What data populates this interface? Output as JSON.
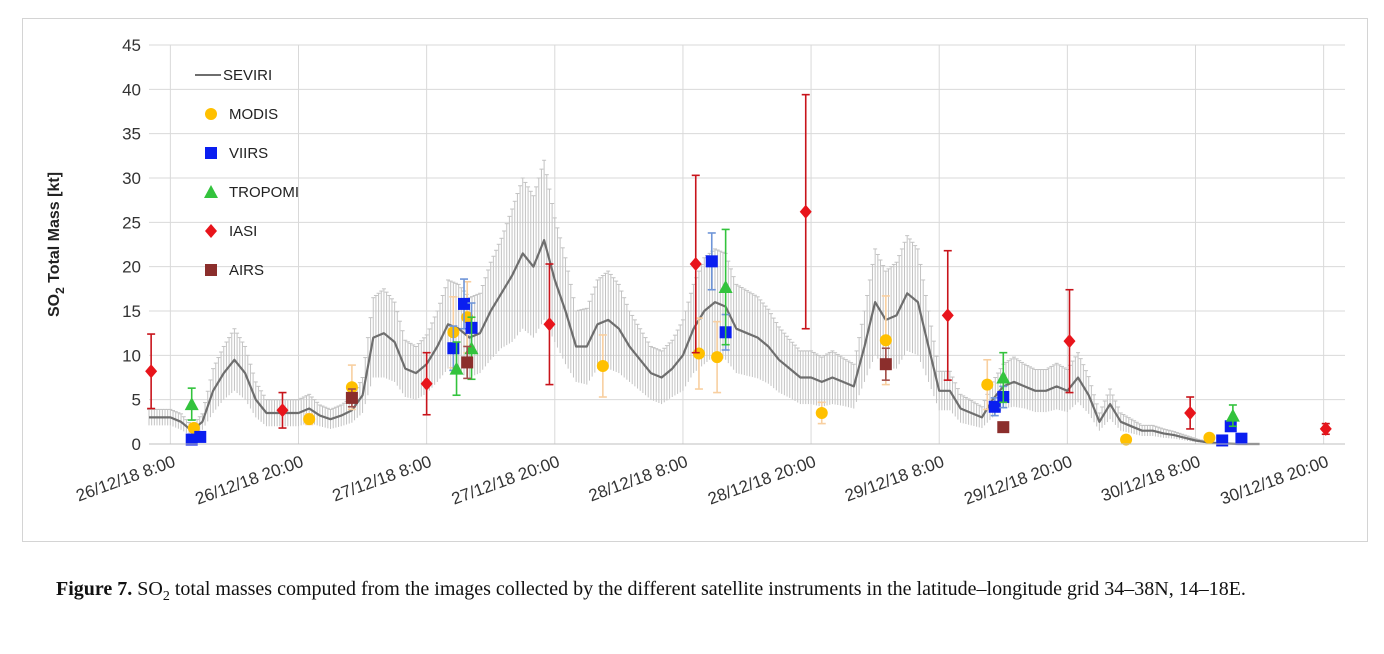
{
  "caption": {
    "figure_label": "Figure 7.",
    "so2_prefix": "SO",
    "so2_subscript": "2",
    "text": " total masses computed from the images collected by the different satellite instruments in the latitude–longitude grid 34–38N, 14–18E."
  },
  "colors": {
    "SEVIRI": "#6e6e6e",
    "SEVIRI_error": "#c3c3c3",
    "MODIS": "#ffc000",
    "MODIS_error": "#f8cfa0",
    "VIIRS": "#0a1ef0",
    "VIIRS_error": "#6f95d8",
    "TROPOMI": "#33c33d",
    "TROPOMI_error": "#33c33d",
    "IASI": "#e8141b",
    "IASI_error": "#c8141b",
    "AIRS": "#8b2e2c",
    "AIRS_error": "#a0504c",
    "grid": "#d9d9d9"
  },
  "chart_data": {
    "type": "scatter",
    "title": "",
    "xlabel": "",
    "ylabel_main": "SO",
    "ylabel_sub": "2",
    "ylabel_rest": " Total Mass [kt]",
    "x_unit": "hours since 26/12/18 8:00",
    "xlim": [
      -2,
      110
    ],
    "ylim": [
      0,
      45
    ],
    "yticks": [
      0,
      5,
      10,
      15,
      20,
      25,
      30,
      35,
      40,
      45
    ],
    "grid": true,
    "legend_position": "top-left",
    "xticks": [
      {
        "x": 0,
        "label": "26/12/18 8:00"
      },
      {
        "x": 12,
        "label": "26/12/18 20:00"
      },
      {
        "x": 24,
        "label": "27/12/18 8:00"
      },
      {
        "x": 36,
        "label": "27/12/18 20:00"
      },
      {
        "x": 48,
        "label": "28/12/18 8:00"
      },
      {
        "x": 60,
        "label": "28/12/18 20:00"
      },
      {
        "x": 72,
        "label": "29/12/18 8:00"
      },
      {
        "x": 84,
        "label": "29/12/18 20:00"
      },
      {
        "x": 96,
        "label": "30/12/18 8:00"
      },
      {
        "x": 108,
        "label": "30/12/18 20:00"
      }
    ],
    "legend": [
      {
        "name": "SEVIRI",
        "marker": "line"
      },
      {
        "name": "MODIS",
        "marker": "circle"
      },
      {
        "name": "VIIRS",
        "marker": "square"
      },
      {
        "name": "TROPOMI",
        "marker": "triangle"
      },
      {
        "name": "IASI",
        "marker": "diamond"
      },
      {
        "name": "AIRS",
        "marker": "square"
      }
    ],
    "seviri": {
      "name": "SEVIRI",
      "x": [
        -2,
        0,
        1,
        2,
        3,
        4,
        5,
        6,
        7,
        8,
        9,
        10,
        11,
        12,
        13,
        14,
        15,
        16,
        17,
        18,
        19,
        20,
        21,
        22,
        23,
        24,
        25,
        26,
        27,
        28,
        29,
        30,
        31,
        32,
        33,
        34,
        35,
        36,
        37,
        38,
        39,
        40,
        41,
        42,
        43,
        44,
        45,
        46,
        47,
        48,
        49,
        50,
        51,
        52,
        53,
        54,
        55,
        56,
        57,
        58,
        59,
        60,
        61,
        62,
        63,
        64,
        65,
        66,
        67,
        68,
        69,
        70,
        71,
        72,
        73,
        74,
        75,
        76,
        77,
        78,
        79,
        80,
        81,
        82,
        83,
        84,
        85,
        86,
        87,
        88,
        89,
        90,
        91,
        92,
        93,
        94,
        95,
        96,
        97,
        98,
        99,
        100,
        101,
        102
      ],
      "y": [
        3,
        3,
        2.5,
        1.5,
        2.5,
        6,
        8,
        9.5,
        8,
        5,
        3.5,
        3.5,
        3.5,
        3.5,
        4,
        3.2,
        2.8,
        3.2,
        3.8,
        5.5,
        12,
        12.5,
        11.5,
        8.5,
        8,
        9,
        11,
        13.5,
        13,
        12,
        12.5,
        15,
        17,
        19,
        21.5,
        20,
        23,
        18.5,
        15,
        11,
        11,
        13.5,
        14,
        13,
        11,
        9.5,
        8,
        7.5,
        8.5,
        10,
        13,
        15,
        16,
        15.5,
        13,
        12.5,
        12,
        11,
        9.5,
        8.5,
        7.5,
        7.5,
        7,
        7.5,
        7,
        6.5,
        11,
        16,
        14,
        14.5,
        17,
        16,
        11,
        6,
        6,
        4,
        3.5,
        3,
        5,
        6.5,
        7,
        6.5,
        6,
        6,
        6.5,
        6,
        7.5,
        5.5,
        2.5,
        4.5,
        2.5,
        2,
        1.5,
        1.5,
        1.2,
        1,
        0.7,
        0.4,
        0.2,
        0.1,
        0.05,
        0,
        0,
        0
      ],
      "err": [
        0.9,
        0.9,
        0.9,
        0.6,
        0.9,
        2.5,
        3,
        3.5,
        3,
        2,
        1.5,
        1.5,
        1.5,
        1.5,
        1.6,
        1.2,
        1.1,
        1.2,
        1.4,
        2,
        4.5,
        5,
        4.5,
        3.2,
        3,
        3.3,
        4,
        5,
        5,
        4.5,
        4.5,
        5.5,
        6.2,
        7.5,
        8.5,
        8,
        9,
        7,
        6,
        4,
        4.3,
        5,
        5.5,
        5,
        4,
        3.5,
        3,
        3,
        3.2,
        4,
        5,
        6,
        6,
        6,
        5,
        4.8,
        4.6,
        4.2,
        3.7,
        3.3,
        3,
        3,
        2.8,
        3,
        2.7,
        2.5,
        4,
        6,
        5.5,
        6,
        6.5,
        6,
        4,
        2.2,
        2.2,
        1.6,
        1.4,
        1.2,
        2,
        2.5,
        2.8,
        2.5,
        2.4,
        2.4,
        2.6,
        2.4,
        2.8,
        2.1,
        1,
        1.7,
        1,
        0.8,
        0.6,
        0.6,
        0.5,
        0.4,
        0.3,
        0.2,
        0.1,
        0.05,
        0.02,
        0,
        0,
        0
      ]
    },
    "series": [
      {
        "name": "MODIS",
        "marker": "circle",
        "points": [
          {
            "x": 2.2,
            "y": 1.8,
            "err": 0.5
          },
          {
            "x": 13,
            "y": 2.8,
            "err": 0.6
          },
          {
            "x": 17,
            "y": 6.4,
            "err": 2.5
          },
          {
            "x": 26.5,
            "y": 12.6,
            "err": 4
          },
          {
            "x": 27.8,
            "y": 14.3,
            "err": 4
          },
          {
            "x": 40.5,
            "y": 8.8,
            "err": 3.5
          },
          {
            "x": 49.5,
            "y": 10.2,
            "err": 4
          },
          {
            "x": 51.2,
            "y": 9.8,
            "err": 4
          },
          {
            "x": 61,
            "y": 3.5,
            "err": 1.2
          },
          {
            "x": 67,
            "y": 11.7,
            "err": 5
          },
          {
            "x": 76.5,
            "y": 6.7,
            "err": 2.8
          },
          {
            "x": 89.5,
            "y": 0.5,
            "err": 0.1
          },
          {
            "x": 97.3,
            "y": 0.7,
            "err": 0.2
          }
        ]
      },
      {
        "name": "VIIRS",
        "marker": "square",
        "points": [
          {
            "x": 2.0,
            "y": 0.5,
            "err": 0.2
          },
          {
            "x": 2.8,
            "y": 0.8,
            "err": 0.2
          },
          {
            "x": 26.5,
            "y": 10.8,
            "err": 2.5
          },
          {
            "x": 27.5,
            "y": 15.8,
            "err": 2.8
          },
          {
            "x": 28.2,
            "y": 13.1,
            "err": 2.8
          },
          {
            "x": 50.7,
            "y": 20.6,
            "err": 3.2
          },
          {
            "x": 52.0,
            "y": 12.6,
            "err": 2
          },
          {
            "x": 77.2,
            "y": 4.2,
            "err": 1
          },
          {
            "x": 78.0,
            "y": 5.3,
            "err": 1.2
          },
          {
            "x": 98.5,
            "y": 0.4,
            "err": 0.1
          },
          {
            "x": 99.3,
            "y": 2.0,
            "err": 0.4
          },
          {
            "x": 100.3,
            "y": 0.6,
            "err": 0.1
          }
        ]
      },
      {
        "name": "TROPOMI",
        "marker": "triangle",
        "points": [
          {
            "x": 2.0,
            "y": 4.5,
            "err": 1.8
          },
          {
            "x": 26.8,
            "y": 8.5,
            "err": 3
          },
          {
            "x": 28.2,
            "y": 10.8,
            "err": 3.5
          },
          {
            "x": 52.0,
            "y": 17.7,
            "err": 6.5
          },
          {
            "x": 78.0,
            "y": 7.5,
            "err": 2.8
          },
          {
            "x": 99.5,
            "y": 3.2,
            "err": 1.2
          }
        ]
      },
      {
        "name": "IASI",
        "marker": "diamond",
        "points": [
          {
            "x": -1.8,
            "y": 8.2,
            "err": 4.2
          },
          {
            "x": 10.5,
            "y": 3.8,
            "err": 2
          },
          {
            "x": 24.0,
            "y": 6.8,
            "err": 3.5
          },
          {
            "x": 35.5,
            "y": 13.5,
            "err": 6.8
          },
          {
            "x": 49.2,
            "y": 20.3,
            "err": 10
          },
          {
            "x": 59.5,
            "y": 26.2,
            "err": 13.2
          },
          {
            "x": 72.8,
            "y": 14.5,
            "err": 7.3
          },
          {
            "x": 84.2,
            "y": 11.6,
            "err": 5.8
          },
          {
            "x": 95.5,
            "y": 3.5,
            "err": 1.8
          },
          {
            "x": 108.2,
            "y": 1.7,
            "err": 0.6
          }
        ]
      },
      {
        "name": "AIRS",
        "marker": "square",
        "points": [
          {
            "x": 17,
            "y": 5.2,
            "err": 1
          },
          {
            "x": 27.8,
            "y": 9.2,
            "err": 1.8
          },
          {
            "x": 67,
            "y": 9.0,
            "err": 1.8
          },
          {
            "x": 78.0,
            "y": 1.9,
            "err": 0.4
          }
        ]
      }
    ]
  }
}
